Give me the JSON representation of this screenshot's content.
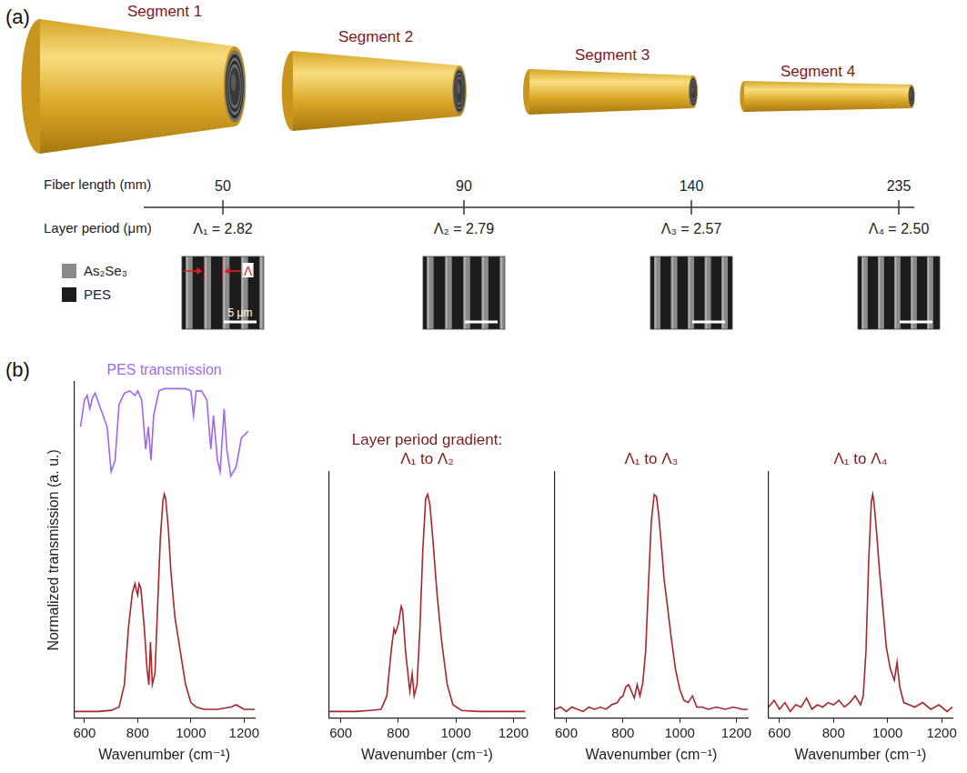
{
  "diagram": {
    "panel_label": "(a)",
    "segments": [
      "Segment 1",
      "Segment 2",
      "Segment 3",
      "Segment 4"
    ],
    "fiber_length": {
      "label": "Fiber length (mm)",
      "values": [
        50,
        90,
        140,
        235
      ]
    },
    "layer_period": {
      "label": "Layer period (μm)",
      "periods": [
        {
          "label": "Λ₁ =",
          "value": 2.82
        },
        {
          "label": "Λ₂ =",
          "value": 2.79
        },
        {
          "label": "Λ₃ =",
          "value": 2.57
        },
        {
          "label": "Λ₄ =",
          "value": 2.5
        }
      ]
    },
    "materials": [
      {
        "name": "As₂Se₃",
        "color": "#8a8a8a"
      },
      {
        "name": "PES",
        "color": "#1c1c1c"
      }
    ],
    "sem": {
      "scale_bar": "5 μm",
      "period_marker": "Λ"
    }
  },
  "charts_label": "(b)",
  "chart_data": [
    {
      "type": "line",
      "xlabel": "Wavenumber (cm⁻¹)",
      "ylabel": "Normalized transmission (a. u.)",
      "xlim": [
        560,
        1240
      ],
      "xticks": [
        600,
        800,
        1000,
        1200
      ],
      "ylim": [
        0,
        1.5
      ],
      "yticks": [],
      "grid": false,
      "tick_labels": "x",
      "series": [
        {
          "name": "PES transmission",
          "color": "#a066f0",
          "x": [
            585,
            600,
            610,
            620,
            630,
            640,
            655,
            670,
            685,
            700,
            715,
            730,
            750,
            770,
            790,
            800,
            815,
            830,
            840,
            850,
            860,
            880,
            900,
            940,
            980,
            1000,
            1010,
            1020,
            1040,
            1060,
            1075,
            1085,
            1100,
            1110,
            1125,
            1135,
            1150,
            1170,
            1190,
            1215
          ],
          "values": [
            1.3,
            1.42,
            1.44,
            1.38,
            1.43,
            1.45,
            1.4,
            1.35,
            1.3,
            1.1,
            1.15,
            1.4,
            1.45,
            1.46,
            1.44,
            1.46,
            1.42,
            1.2,
            1.3,
            1.15,
            1.35,
            1.46,
            1.47,
            1.47,
            1.47,
            1.46,
            1.35,
            1.46,
            1.46,
            1.42,
            1.2,
            1.35,
            1.15,
            1.1,
            1.38,
            1.2,
            1.08,
            1.12,
            1.25,
            1.28
          ]
        },
        {
          "color": "#a8262b",
          "x": [
            560,
            600,
            650,
            700,
            730,
            750,
            765,
            780,
            790,
            795,
            800,
            805,
            812,
            825,
            835,
            842,
            848,
            855,
            865,
            875,
            885,
            895,
            900,
            905,
            915,
            925,
            940,
            960,
            980,
            1000,
            1020,
            1050,
            1100,
            1150,
            1170,
            1200,
            1240
          ],
          "values": [
            0.03,
            0.03,
            0.03,
            0.035,
            0.05,
            0.15,
            0.4,
            0.56,
            0.6,
            0.57,
            0.55,
            0.6,
            0.58,
            0.4,
            0.22,
            0.15,
            0.34,
            0.15,
            0.2,
            0.5,
            0.8,
            0.97,
            1.0,
            0.98,
            0.85,
            0.65,
            0.45,
            0.3,
            0.15,
            0.07,
            0.05,
            0.04,
            0.04,
            0.05,
            0.06,
            0.04,
            0.04
          ]
        }
      ]
    },
    {
      "type": "line",
      "title": "Layer period gradient:",
      "subtitle": "Λ₁ to Λ₂",
      "xlabel": "Wavenumber (cm⁻¹)",
      "xlim": [
        560,
        1240
      ],
      "xticks": [
        600,
        800,
        1000,
        1200
      ],
      "ylim": [
        0,
        1.1
      ],
      "yticks": [],
      "grid": false,
      "tick_labels": "x",
      "series": [
        {
          "color": "#a8262b",
          "x": [
            560,
            600,
            650,
            700,
            740,
            760,
            775,
            785,
            790,
            800,
            810,
            815,
            825,
            840,
            848,
            855,
            865,
            875,
            885,
            895,
            902,
            910,
            920,
            935,
            950,
            970,
            990,
            1020,
            1080,
            1150,
            1200,
            1240
          ],
          "values": [
            0.03,
            0.03,
            0.03,
            0.035,
            0.04,
            0.1,
            0.3,
            0.4,
            0.38,
            0.42,
            0.5,
            0.48,
            0.3,
            0.12,
            0.2,
            0.1,
            0.15,
            0.4,
            0.75,
            0.98,
            1.0,
            0.95,
            0.8,
            0.55,
            0.35,
            0.15,
            0.06,
            0.035,
            0.03,
            0.03,
            0.03,
            0.03
          ]
        }
      ]
    },
    {
      "type": "line",
      "title": "Λ₁ to Λ₃",
      "xlabel": "Wavenumber (cm⁻¹)",
      "xlim": [
        560,
        1240
      ],
      "xticks": [
        600,
        800,
        1000,
        1200
      ],
      "ylim": [
        0,
        1.1
      ],
      "yticks": [],
      "grid": false,
      "tick_labels": "x",
      "series": [
        {
          "color": "#a8262b",
          "x": [
            560,
            580,
            600,
            620,
            640,
            660,
            680,
            700,
            720,
            740,
            760,
            780,
            790,
            800,
            810,
            820,
            830,
            840,
            850,
            860,
            870,
            880,
            890,
            900,
            910,
            918,
            925,
            935,
            945,
            955,
            970,
            985,
            1000,
            1015,
            1030,
            1045,
            1060,
            1080,
            1100,
            1130,
            1160,
            1190,
            1220,
            1240
          ],
          "values": [
            0.04,
            0.05,
            0.03,
            0.05,
            0.04,
            0.03,
            0.05,
            0.04,
            0.05,
            0.04,
            0.06,
            0.07,
            0.09,
            0.1,
            0.14,
            0.15,
            0.12,
            0.09,
            0.15,
            0.1,
            0.16,
            0.3,
            0.6,
            0.88,
            1.0,
            0.99,
            0.92,
            0.78,
            0.62,
            0.52,
            0.36,
            0.22,
            0.13,
            0.08,
            0.07,
            0.1,
            0.05,
            0.05,
            0.04,
            0.05,
            0.04,
            0.05,
            0.04,
            0.04
          ]
        }
      ]
    },
    {
      "type": "line",
      "title": "Λ₁ to Λ₄",
      "xlabel": "Wavenumber (cm⁻¹)",
      "xlim": [
        560,
        1240
      ],
      "xticks": [
        600,
        800,
        1000,
        1200
      ],
      "ylim": [
        0,
        1.1
      ],
      "yticks": [],
      "grid": false,
      "tick_labels": "x",
      "series": [
        {
          "color": "#a8262b",
          "x": [
            560,
            580,
            600,
            620,
            640,
            660,
            680,
            700,
            720,
            740,
            760,
            780,
            800,
            820,
            840,
            860,
            880,
            900,
            910,
            920,
            930,
            940,
            945,
            950,
            960,
            970,
            985,
            995,
            1010,
            1025,
            1035,
            1045,
            1060,
            1080,
            1100,
            1130,
            1160,
            1190,
            1220,
            1240
          ],
          "values": [
            0.05,
            0.08,
            0.04,
            0.07,
            0.03,
            0.06,
            0.05,
            0.09,
            0.04,
            0.06,
            0.05,
            0.07,
            0.06,
            0.08,
            0.05,
            0.07,
            0.1,
            0.06,
            0.1,
            0.3,
            0.7,
            0.97,
            1.0,
            0.96,
            0.82,
            0.66,
            0.46,
            0.32,
            0.22,
            0.17,
            0.25,
            0.14,
            0.07,
            0.06,
            0.05,
            0.07,
            0.04,
            0.06,
            0.03,
            0.05
          ]
        }
      ]
    }
  ]
}
